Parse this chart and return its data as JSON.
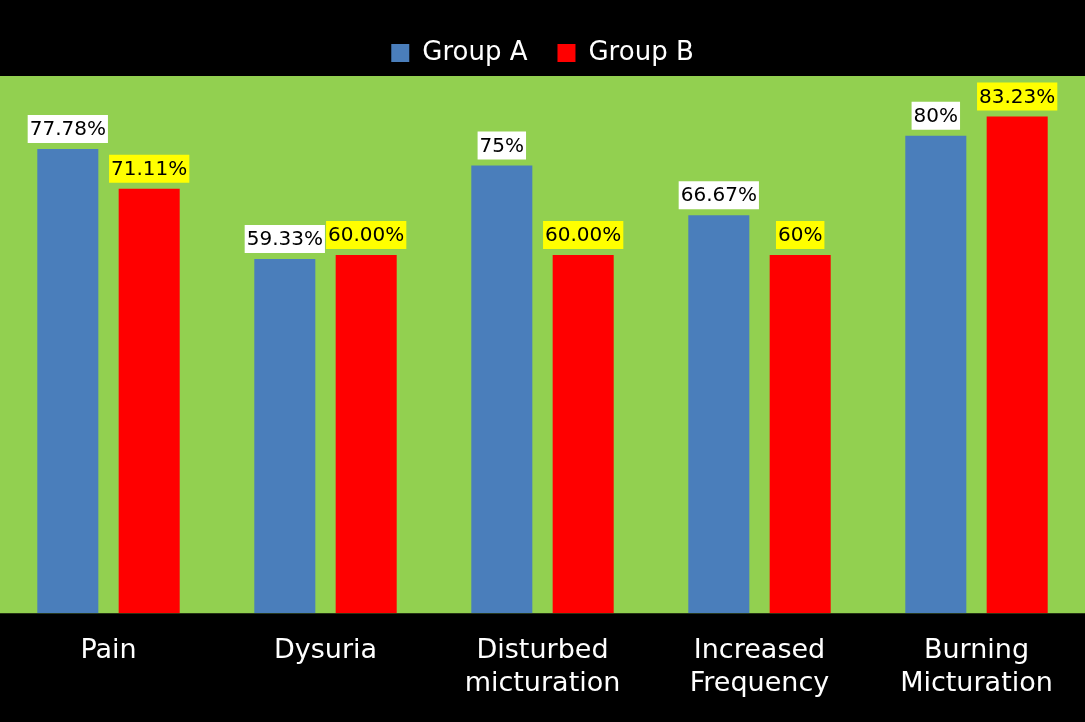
{
  "chart_data": {
    "type": "bar",
    "categories": [
      "Pain",
      "Dysuria",
      "Disturbed micturation",
      "Increased Frequency",
      "Burning Micturation"
    ],
    "series": [
      {
        "name": "Group A",
        "color": "#4a7ebb",
        "values": [
          77.78,
          59.33,
          75,
          66.67,
          80
        ],
        "value_labels": [
          "77.78%",
          "59.33%",
          "75%",
          "66.67%",
          "80%"
        ]
      },
      {
        "name": "Group B",
        "color": "#ff0000",
        "values": [
          71.11,
          60.0,
          60.0,
          60,
          83.23
        ],
        "value_labels": [
          "71.11%",
          "60.00%",
          "60.00%",
          "60%",
          "83.23%"
        ]
      }
    ],
    "legend": "top",
    "grid": false
  }
}
